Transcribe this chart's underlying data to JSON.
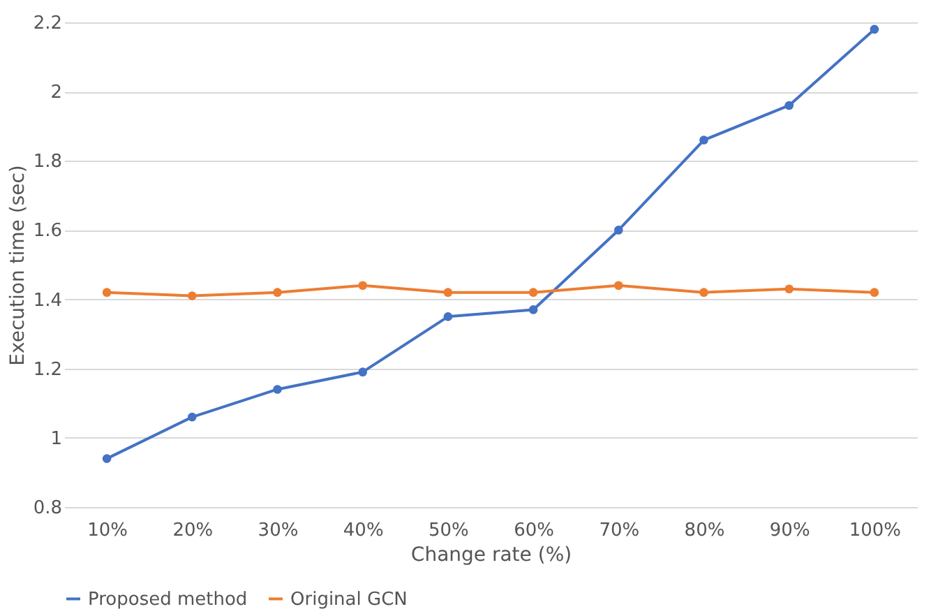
{
  "chart_data": {
    "type": "line",
    "xlabel": "Change rate (%)",
    "ylabel": "Execution time (sec)",
    "categories": [
      "10%",
      "20%",
      "30%",
      "40%",
      "50%",
      "60%",
      "70%",
      "80%",
      "90%",
      "100%"
    ],
    "series": [
      {
        "name": "Proposed method",
        "color": "#4472c4",
        "values": [
          0.94,
          1.06,
          1.14,
          1.19,
          1.35,
          1.37,
          1.6,
          1.86,
          1.96,
          2.18
        ]
      },
      {
        "name": "Original GCN",
        "color": "#ed7d31",
        "values": [
          1.42,
          1.41,
          1.42,
          1.44,
          1.42,
          1.42,
          1.44,
          1.42,
          1.43,
          1.42
        ]
      }
    ],
    "ylim": [
      0.8,
      2.2
    ],
    "yticks": [
      0.8,
      1,
      1.2,
      1.4,
      1.6,
      1.8,
      2,
      2.2
    ],
    "grid": "y",
    "legend": "bottom",
    "marker": "circle",
    "line_style": "solid"
  }
}
